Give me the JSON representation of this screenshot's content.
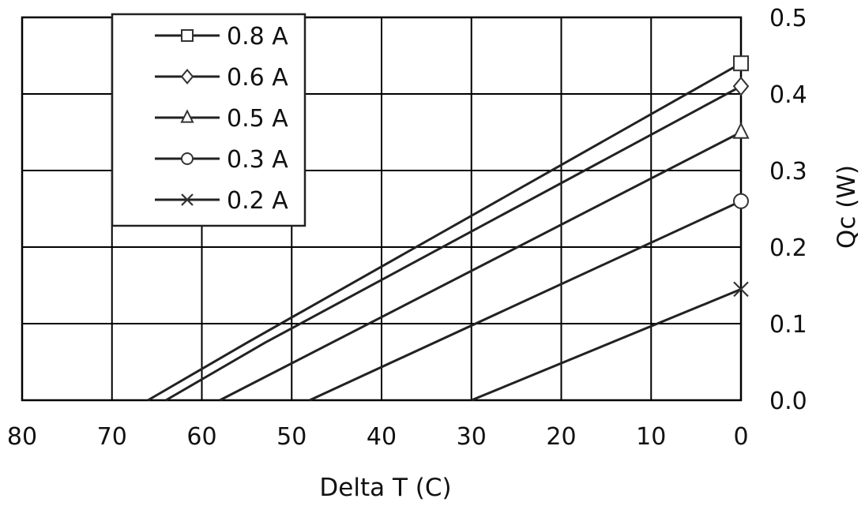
{
  "chart_data": {
    "type": "line",
    "xlabel": "Delta T (C)",
    "ylabel": "Qc (W)",
    "xlim": [
      80,
      0
    ],
    "ylim": [
      0,
      0.5
    ],
    "x_ticks": [
      "80",
      "70",
      "60",
      "50",
      "40",
      "30",
      "20",
      "10",
      "0"
    ],
    "y_ticks": [
      "0.0",
      "0.1",
      "0.2",
      "0.3",
      "0.4",
      "0.5"
    ],
    "x_reversed": true,
    "y_axis_side": "right",
    "grid": true,
    "legend_position": "top-left",
    "series": [
      {
        "name": "0.8 A",
        "marker": "square",
        "points": [
          [
            66,
            0
          ],
          [
            55,
            0.075
          ],
          [
            0,
            0.44
          ]
        ]
      },
      {
        "name": "0.6 A",
        "marker": "diamond",
        "points": [
          [
            64,
            0
          ],
          [
            53,
            0.075
          ],
          [
            0,
            0.41
          ]
        ]
      },
      {
        "name": "0.5 A",
        "marker": "triangle",
        "points": [
          [
            58,
            0
          ],
          [
            0,
            0.35
          ]
        ]
      },
      {
        "name": "0.3 A",
        "marker": "circle",
        "points": [
          [
            48,
            0
          ],
          [
            0,
            0.26
          ]
        ]
      },
      {
        "name": "0.2 A",
        "marker": "x",
        "points": [
          [
            30,
            0
          ],
          [
            0,
            0.145
          ]
        ]
      }
    ]
  }
}
